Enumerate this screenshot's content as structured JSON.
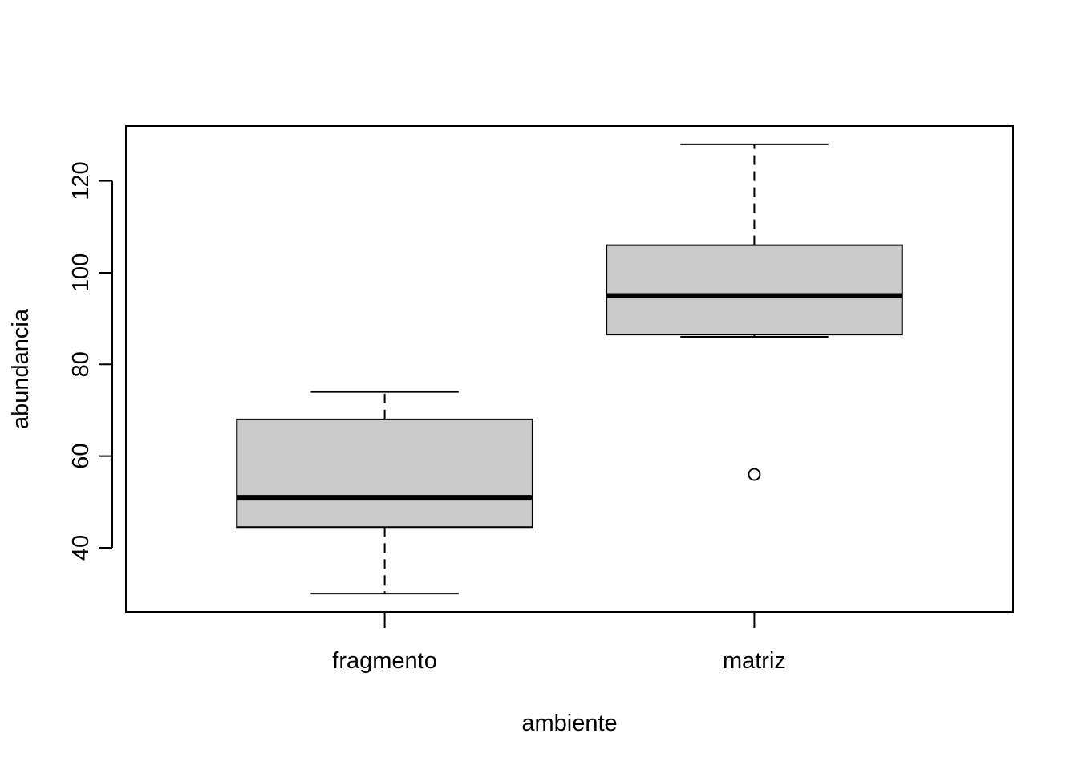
{
  "chart_data": {
    "type": "box",
    "title": "",
    "xlabel": "ambiente",
    "ylabel": "abundancia",
    "ylim": [
      26,
      132
    ],
    "yticks": [
      40,
      60,
      80,
      100,
      120
    ],
    "grid": false,
    "categories": [
      "fragmento",
      "matriz"
    ],
    "boxes": [
      {
        "category": "fragmento",
        "whisker_low": 30,
        "q1": 44.5,
        "median": 51,
        "q3": 68,
        "whisker_high": 74,
        "outliers": []
      },
      {
        "category": "matriz",
        "whisker_low": 86,
        "q1": 86.5,
        "median": 95,
        "q3": 106,
        "whisker_high": 128,
        "outliers": [
          56
        ]
      }
    ],
    "colors": {
      "box_fill": "#cacaca",
      "line": "#000000"
    }
  }
}
